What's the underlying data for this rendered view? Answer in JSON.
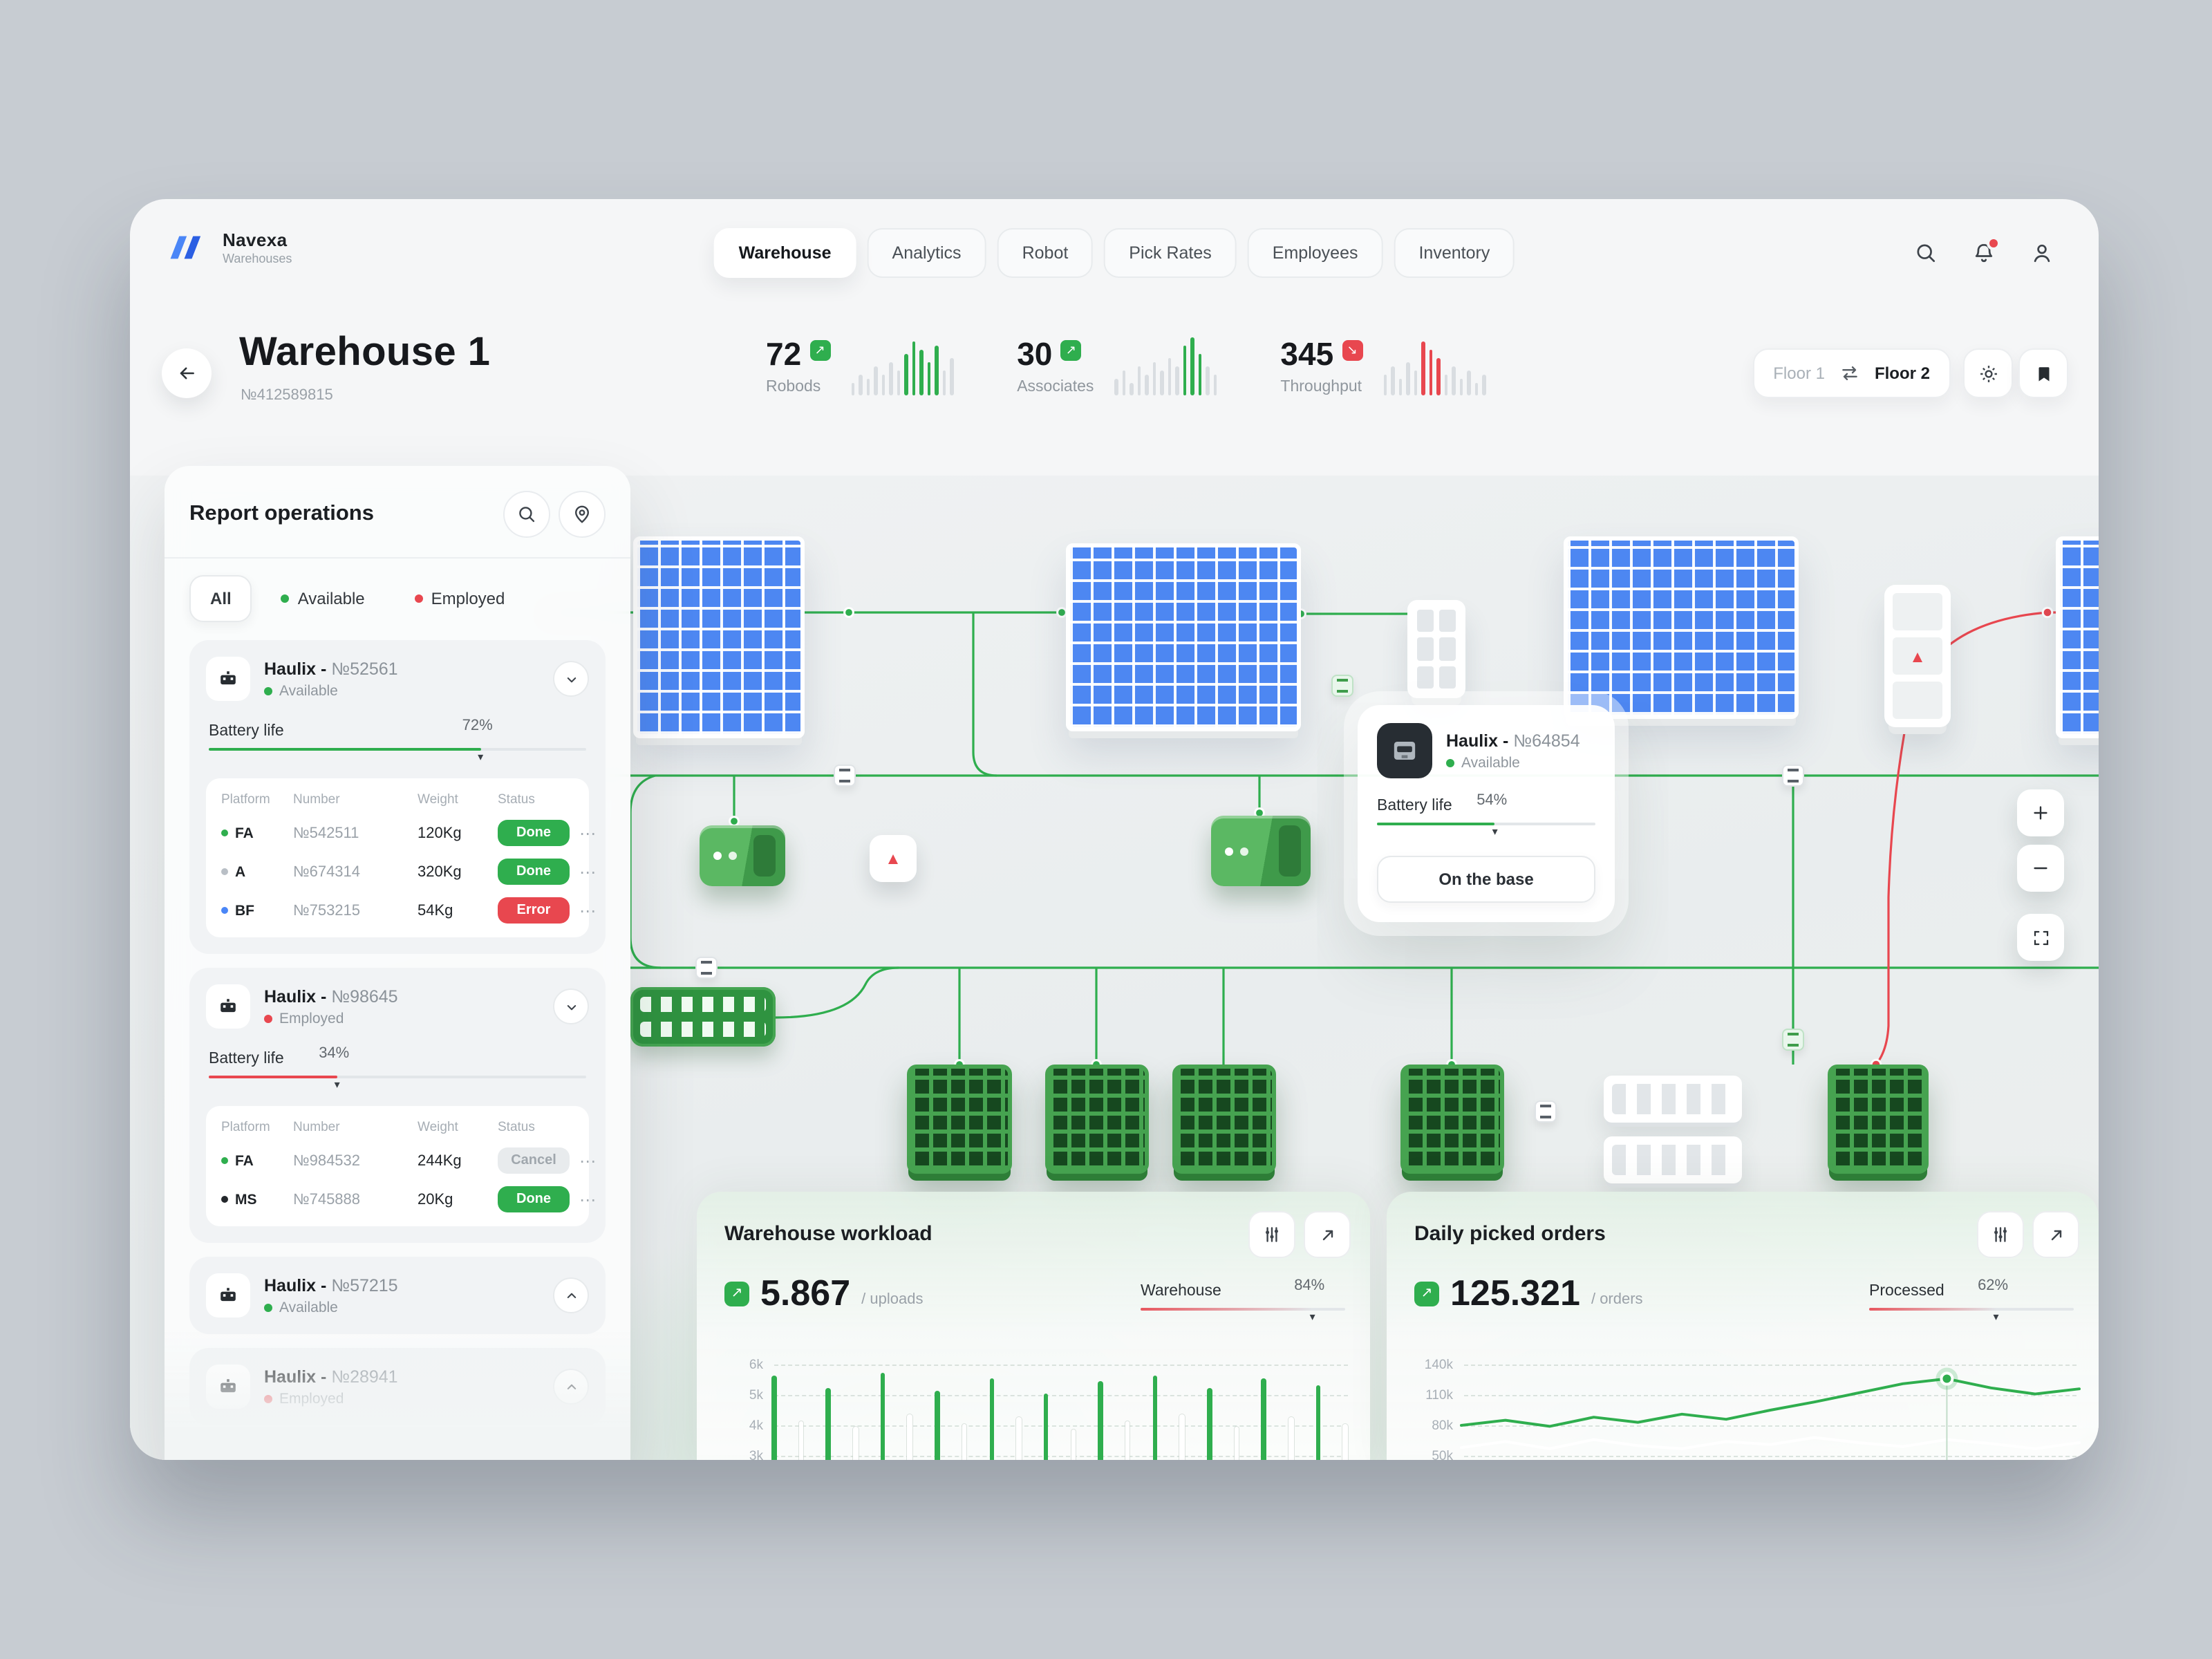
{
  "brand": {
    "name": "Navexa",
    "sub": "Warehouses"
  },
  "nav": {
    "tabs": [
      {
        "label": "Warehouse",
        "active": true
      },
      {
        "label": "Analytics",
        "active": false
      },
      {
        "label": "Robot",
        "active": false
      },
      {
        "label": "Pick Rates",
        "active": false
      },
      {
        "label": "Employees",
        "active": false
      },
      {
        "label": "Inventory",
        "active": false
      }
    ]
  },
  "header": {
    "title": "Warehouse 1",
    "subtitle": "№412589815",
    "stats": [
      {
        "value": "72",
        "label": "Robods",
        "trend": "up",
        "spark": {
          "values": [
            3,
            5,
            4,
            7,
            5,
            8,
            6,
            10,
            13,
            11,
            8,
            12,
            6,
            9
          ],
          "highlight": [
            7,
            8,
            9,
            10,
            11
          ],
          "color": "#2fae4e"
        }
      },
      {
        "value": "30",
        "label": "Associates",
        "trend": "up",
        "spark": {
          "values": [
            4,
            6,
            3,
            7,
            5,
            8,
            6,
            9,
            7,
            12,
            14,
            10,
            7,
            5
          ],
          "highlight": [
            9,
            10,
            11
          ],
          "color": "#2fae4e"
        }
      },
      {
        "value": "345",
        "label": "Throughput",
        "trend": "down",
        "spark": {
          "values": [
            5,
            7,
            4,
            8,
            6,
            13,
            11,
            9,
            5,
            7,
            4,
            6,
            3,
            5
          ],
          "highlight": [
            5,
            6,
            7
          ],
          "color": "#e8474f"
        }
      }
    ],
    "floor": {
      "left": "Floor 1",
      "right": "Floor 2"
    }
  },
  "sidebar": {
    "title": "Report operations",
    "filters": [
      {
        "label": "All",
        "active": true
      },
      {
        "label": "Available",
        "dot": "#2fae4e"
      },
      {
        "label": "Employed",
        "dot": "#e8474f"
      }
    ],
    "robots": [
      {
        "name": "Haulix -",
        "number": "№52561",
        "status": "Available",
        "status_color": "#2fae4e",
        "expanded": true,
        "battery": {
          "label": "Battery life",
          "percent": 72,
          "color": "#2fae4e"
        },
        "table": {
          "headers": [
            "Platform",
            "Number",
            "Weight",
            "Status"
          ],
          "rows": [
            {
              "platform": "FA",
              "dot": "#2fae4e",
              "number": "№542511",
              "weight": "120Kg",
              "status": "Done",
              "type": "done"
            },
            {
              "platform": "A",
              "dot": "#b9bfc6",
              "number": "№674314",
              "weight": "320Kg",
              "status": "Done",
              "type": "done"
            },
            {
              "platform": "BF",
              "dot": "#4a86f7",
              "number": "№753215",
              "weight": "54Kg",
              "status": "Error",
              "type": "error"
            }
          ]
        }
      },
      {
        "name": "Haulix -",
        "number": "№98645",
        "status": "Employed",
        "status_color": "#e8474f",
        "expanded": true,
        "battery": {
          "label": "Battery life",
          "percent": 34,
          "color": "#e8474f"
        },
        "table": {
          "headers": [
            "Platform",
            "Number",
            "Weight",
            "Status"
          ],
          "rows": [
            {
              "platform": "FA",
              "dot": "#2fae4e",
              "number": "№984532",
              "weight": "244Kg",
              "status": "Cancel",
              "type": "cancel"
            },
            {
              "platform": "MS",
              "dot": "#23272b",
              "number": "№745888",
              "weight": "20Kg",
              "status": "Done",
              "type": "done"
            }
          ]
        }
      },
      {
        "name": "Haulix -",
        "number": "№57215",
        "status": "Available",
        "status_color": "#2fae4e",
        "expanded": false
      },
      {
        "name": "Haulix -",
        "number": "№28941",
        "status": "Employed",
        "status_color": "#e8474f",
        "expanded": false
      }
    ]
  },
  "map": {
    "tooltip": {
      "name": "Haulix -",
      "number": "№64854",
      "status": "Available",
      "battery": {
        "label": "Battery life",
        "percent": 54,
        "color": "#2fae4e"
      },
      "action": "On the base"
    }
  },
  "workload": {
    "title": "Warehouse workload",
    "value": "5.867",
    "unit": "/ uploads",
    "slider": {
      "label": "Warehouse",
      "percent": 84
    },
    "chart_data": {
      "type": "bar",
      "ylabels": [
        "6k",
        "5k",
        "4k",
        "3k"
      ],
      "ymax": 6,
      "bars": [
        {
          "v": 5.9,
          "c": "green"
        },
        {
          "v": 4.4,
          "c": "white"
        },
        {
          "v": 5.5,
          "c": "green"
        },
        {
          "v": 4.2,
          "c": "white"
        },
        {
          "v": 6.0,
          "c": "green"
        },
        {
          "v": 4.6,
          "c": "white"
        },
        {
          "v": 5.4,
          "c": "green"
        },
        {
          "v": 4.3,
          "c": "white"
        },
        {
          "v": 5.8,
          "c": "green"
        },
        {
          "v": 4.5,
          "c": "white"
        },
        {
          "v": 5.3,
          "c": "green"
        },
        {
          "v": 4.1,
          "c": "white"
        },
        {
          "v": 5.7,
          "c": "green"
        },
        {
          "v": 4.4,
          "c": "white"
        },
        {
          "v": 5.9,
          "c": "green"
        },
        {
          "v": 4.6,
          "c": "white"
        },
        {
          "v": 5.5,
          "c": "green"
        },
        {
          "v": 4.2,
          "c": "white"
        },
        {
          "v": 5.8,
          "c": "green"
        },
        {
          "v": 4.5,
          "c": "white"
        },
        {
          "v": 5.6,
          "c": "green"
        },
        {
          "v": 4.3,
          "c": "white"
        }
      ]
    }
  },
  "orders": {
    "title": "Daily picked orders",
    "value": "125.321",
    "unit": "/ orders",
    "slider": {
      "label": "Processed",
      "percent": 62
    },
    "chart_data": {
      "type": "line",
      "ylabels": [
        "140k",
        "110k",
        "80k",
        "50k"
      ],
      "ytop": 140,
      "ystep": 30,
      "series": [
        {
          "name": "baseline",
          "color": "white",
          "values": [
            58,
            64,
            57,
            66,
            60,
            57,
            64,
            61,
            68,
            63,
            59,
            66,
            62,
            57,
            63
          ]
        },
        {
          "name": "picked",
          "color": "green",
          "values": [
            80,
            85,
            79,
            88,
            83,
            91,
            86,
            95,
            103,
            112,
            121,
            126,
            117,
            111,
            116
          ],
          "point": 11
        }
      ]
    }
  }
}
